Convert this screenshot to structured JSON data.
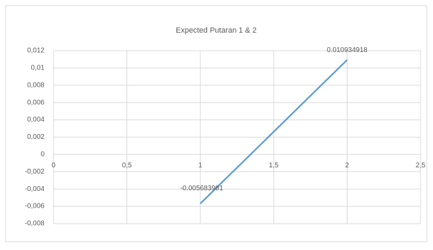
{
  "chart_data": {
    "type": "line",
    "title": "Expected Putaran 1 & 2",
    "x": [
      1,
      2
    ],
    "values": [
      -0.005683981,
      0.010934918
    ],
    "color": "#5b9bd5",
    "xlim": [
      0,
      2.5
    ],
    "xticks": [
      0,
      {
        "value": 0.5,
        "label": "0,5"
      },
      1,
      {
        "value": 1.5,
        "label": "1,5"
      },
      2,
      {
        "value": 2.5,
        "label": "2,5"
      }
    ],
    "ylim": [
      -0.008,
      0.012
    ],
    "yticks": [
      {
        "value": 0.012,
        "label": "0,012"
      },
      {
        "value": 0.01,
        "label": "0,01"
      },
      {
        "value": 0.008,
        "label": "0,008"
      },
      {
        "value": 0.006,
        "label": "0,006"
      },
      {
        "value": 0.004,
        "label": "0,004"
      },
      {
        "value": 0.002,
        "label": "0,002"
      },
      0,
      {
        "value": -0.002,
        "label": "-0,002"
      },
      {
        "value": -0.004,
        "label": "-0,004"
      },
      {
        "value": -0.006,
        "label": "-0,006"
      },
      {
        "value": -0.008,
        "label": "-0,008"
      }
    ],
    "grid": true
  }
}
